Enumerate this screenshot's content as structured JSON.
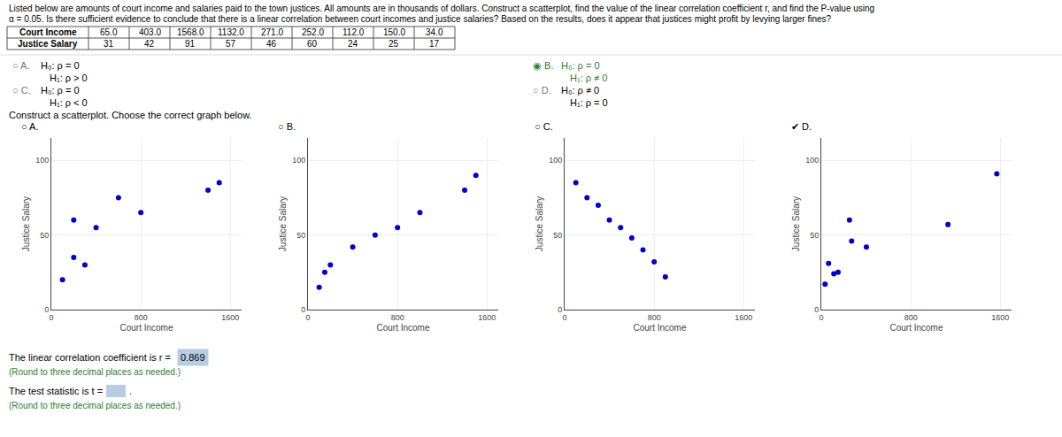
{
  "chart_data": [
    {
      "type": "scatter",
      "title": "○ A.",
      "x_label": "Court Income",
      "y_label": "Justice Salary",
      "x": [
        1400,
        1500,
        600,
        800,
        200,
        400,
        200,
        300,
        100
      ],
      "values": [
        80,
        85,
        75,
        65,
        60,
        55,
        35,
        30,
        20
      ],
      "color": "#0000CD",
      "xlim": [
        0,
        1700
      ],
      "ylim": [
        0,
        115
      ],
      "xticks": [
        0,
        800,
        1600
      ],
      "yticks": [
        0,
        50,
        100
      ],
      "grid": true
    },
    {
      "type": "scatter",
      "title": "○ B.",
      "x_label": "Court Income",
      "y_label": "Justice Salary",
      "x": [
        100,
        150,
        200,
        400,
        600,
        800,
        1000,
        1400,
        1500
      ],
      "values": [
        15,
        25,
        30,
        42,
        50,
        55,
        65,
        80,
        90
      ],
      "color": "#0000CD",
      "xlim": [
        0,
        1700
      ],
      "ylim": [
        0,
        115
      ],
      "xticks": [
        0,
        800,
        1600
      ],
      "yticks": [
        0,
        50,
        100
      ],
      "grid": true
    },
    {
      "type": "scatter",
      "title": "○ C.",
      "x_label": "Court Income",
      "y_label": "Justice Salary",
      "x": [
        100,
        200,
        300,
        400,
        500,
        600,
        700,
        800,
        900
      ],
      "values": [
        85,
        75,
        70,
        60,
        55,
        48,
        40,
        32,
        22
      ],
      "color": "#0000CD",
      "xlim": [
        0,
        1700
      ],
      "ylim": [
        0,
        115
      ],
      "xticks": [
        0,
        800,
        1600
      ],
      "yticks": [
        0,
        50,
        100
      ],
      "grid": true
    },
    {
      "type": "scatter",
      "title": "✔ D.",
      "x_label": "Court Income",
      "y_label": "Justice Salary",
      "x": [
        65.0,
        403.0,
        1568.0,
        1132.0,
        271.0,
        252.0,
        112.0,
        150.0,
        34.0
      ],
      "values": [
        31,
        42,
        91,
        57,
        46,
        60,
        24,
        25,
        17
      ],
      "color": "#0000CD",
      "xlim": [
        0,
        1700
      ],
      "ylim": [
        0,
        115
      ],
      "xticks": [
        0,
        800,
        1600
      ],
      "yticks": [
        0,
        50,
        100
      ],
      "grid": true
    }
  ],
  "annotations": [
    [
      "Listed below are amounts of court income and salaries paid to the town justices. All amounts are in thousands of dollars. Construct a scatterplot, find the value of the linear correlation coefficient r, and find the P-value using",
      "α = 0.05. Is there sufficient evidence to conclude that there is a linear correlation between court incomes and justice salaries? Based on the results, does it appear that justices might profit by levying larger fines?"
    ],
    [
      [
        "Court Income",
        "65.0",
        "403.0",
        "1568.0",
        "1132.0",
        "271.0",
        "252.0",
        "112.0",
        "150.0",
        "34.0"
      ],
      [
        "Justice Salary",
        "31",
        "42",
        "91",
        "57",
        "46",
        "60",
        "24",
        "25",
        "17"
      ]
    ],
    [
      {
        "text": "○ A.",
        "color": "#777777"
      },
      "H₀: ρ = 0",
      "H₁: ρ > 0"
    ],
    [
      {
        "text": "○ C.",
        "color": "#777777"
      },
      "H₀: ρ = 0",
      "H₁: ρ < 0"
    ],
    [
      {
        "text": "◉ B.",
        "color": "#2E7D32"
      },
      {
        "text": "H₀: ρ = 0",
        "color": "#2E7D32"
      },
      {
        "text": "H₁: ρ ≠ 0",
        "color": "#2E7D32"
      }
    ],
    [
      {
        "text": "○ D.",
        "color": "#777777"
      },
      "H₀: ρ ≠ 0",
      "H₁: ρ = 0"
    ],
    [
      "Construct a scatterplot. Choose the correct graph below."
    ],
    [
      [
        "The linear correlation coefficient is r =",
        {
          "text": "0.869",
          "color": "#B8CCE4"
        }
      ],
      {
        "text": "(Round to three decimal places as needed.)",
        "color": "#2E7D32"
      },
      [
        "The test statistic is t =",
        {
          "color": "#B8CCE4"
        },
        "."
      ],
      {
        "text": "(Round to three decimal places as needed.)",
        "color": "#2E7D32"
      }
    ]
  ]
}
